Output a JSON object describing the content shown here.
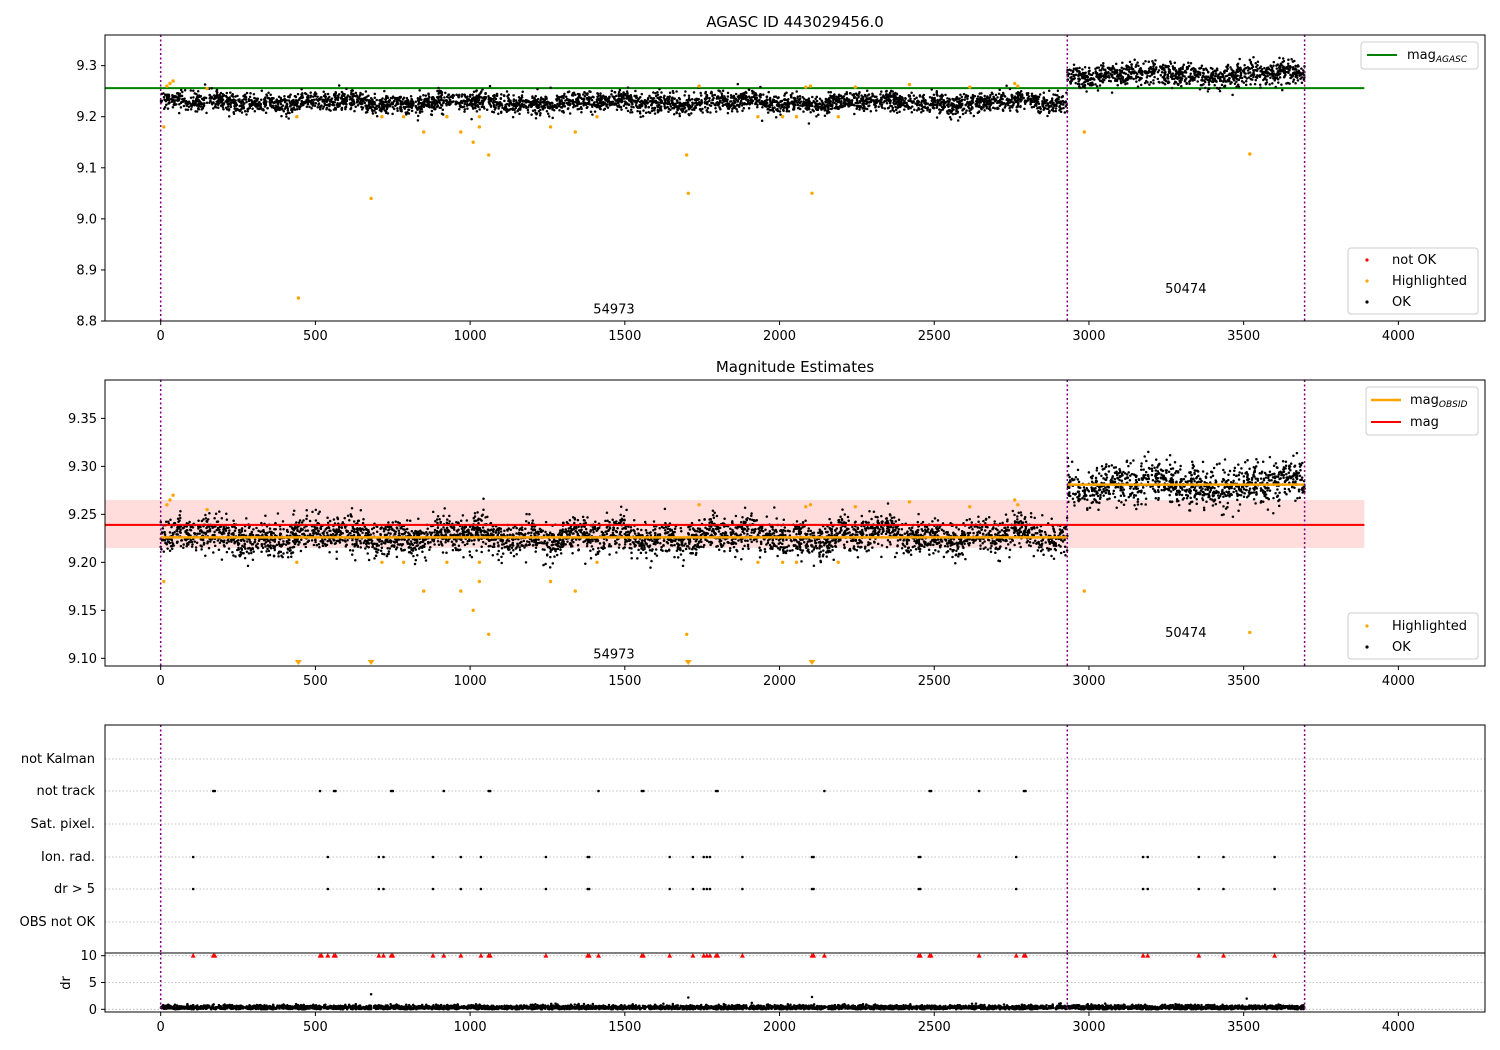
{
  "chart_data": [
    {
      "type": "scatter",
      "title": "AGASC ID 443029456.0",
      "xlim": [
        -180,
        4280
      ],
      "ylim": [
        8.8,
        9.36
      ],
      "x_ticks": [
        0,
        500,
        1000,
        1500,
        2000,
        2500,
        3000,
        3500,
        4000
      ],
      "y_ticks": [
        8.8,
        8.9,
        9.0,
        9.1,
        9.2,
        9.3
      ],
      "vlines": [
        0,
        2930,
        3697
      ],
      "obsid_labels": [
        {
          "text": "54973",
          "x": 1465,
          "y": 8.815
        },
        {
          "text": "50474",
          "x": 3313,
          "y": 8.855
        }
      ],
      "legend_upper": [
        {
          "name": "mag",
          "sub": "AGASC",
          "color": "#008000",
          "kind": "line"
        }
      ],
      "legend_lower": [
        {
          "name": "not OK",
          "color": "#ff0000",
          "kind": "dot"
        },
        {
          "name": "Highlighted",
          "color": "#ffa500",
          "kind": "dot"
        },
        {
          "name": "OK",
          "color": "#000000",
          "kind": "dot"
        }
      ],
      "hline": {
        "y": 9.256,
        "x": [
          -180,
          3890
        ],
        "color": "#008000"
      },
      "segments": [
        {
          "x": [
            0,
            2930
          ],
          "center": 9.228,
          "spread": 0.022
        },
        {
          "x": [
            2930,
            3697
          ],
          "center": 9.282,
          "spread": 0.026
        }
      ],
      "highlighted": [
        [
          10,
          9.18
        ],
        [
          20,
          9.26
        ],
        [
          30,
          9.265
        ],
        [
          40,
          9.27
        ],
        [
          150,
          9.255
        ],
        [
          440,
          9.2
        ],
        [
          445,
          8.845
        ],
        [
          680,
          9.04
        ],
        [
          715,
          9.2
        ],
        [
          785,
          9.2
        ],
        [
          850,
          9.17
        ],
        [
          925,
          9.2
        ],
        [
          970,
          9.17
        ],
        [
          1010,
          9.15
        ],
        [
          1030,
          9.18
        ],
        [
          1030,
          9.2
        ],
        [
          1060,
          9.125
        ],
        [
          1260,
          9.18
        ],
        [
          1340,
          9.17
        ],
        [
          1410,
          9.2
        ],
        [
          1700,
          9.125
        ],
        [
          1705,
          9.05
        ],
        [
          1740,
          9.26
        ],
        [
          1930,
          9.2
        ],
        [
          2010,
          9.2
        ],
        [
          2055,
          9.2
        ],
        [
          2085,
          9.258
        ],
        [
          2100,
          9.26
        ],
        [
          2105,
          9.05
        ],
        [
          2190,
          9.2
        ],
        [
          2245,
          9.258
        ],
        [
          2420,
          9.263
        ],
        [
          2615,
          9.258
        ],
        [
          2760,
          9.265
        ],
        [
          2770,
          9.26
        ],
        [
          2985,
          9.17
        ],
        [
          3520,
          9.127
        ]
      ]
    },
    {
      "type": "scatter",
      "title": "Magnitude Estimates",
      "xlim": [
        -180,
        4280
      ],
      "ylim": [
        9.092,
        9.39
      ],
      "x_ticks": [
        0,
        500,
        1000,
        1500,
        2000,
        2500,
        3000,
        3500,
        4000
      ],
      "y_ticks": [
        9.1,
        9.15,
        9.2,
        9.25,
        9.3,
        9.35
      ],
      "vlines": [
        0,
        2930,
        3697
      ],
      "obsid_labels": [
        {
          "text": "54973",
          "x": 1465,
          "y": 9.1
        },
        {
          "text": "50474",
          "x": 3313,
          "y": 9.122
        }
      ],
      "legend_upper": [
        {
          "name": "mag",
          "sub": "OBSID",
          "color": "#ffa500",
          "kind": "line"
        },
        {
          "name": "mag",
          "sub": "",
          "color": "#ff0000",
          "kind": "line"
        }
      ],
      "legend_lower": [
        {
          "name": "Highlighted",
          "color": "#ffa500",
          "kind": "dot"
        },
        {
          "name": "OK",
          "color": "#000000",
          "kind": "dot"
        }
      ],
      "band": {
        "y": [
          9.215,
          9.265
        ],
        "x": [
          -180,
          3890
        ],
        "color": "#ffdddd"
      },
      "hline": {
        "y": 9.239,
        "x": [
          -180,
          3890
        ],
        "color": "#ff0000"
      },
      "obsid_means": [
        {
          "x": [
            0,
            2930
          ],
          "y": 9.226
        },
        {
          "x": [
            2930,
            3697
          ],
          "y": 9.281
        }
      ],
      "segments": [
        {
          "x": [
            0,
            2930
          ],
          "center": 9.227,
          "spread": 0.021
        },
        {
          "x": [
            2930,
            3697
          ],
          "center": 9.281,
          "spread": 0.024
        }
      ],
      "highlighted": [
        [
          10,
          9.18
        ],
        [
          20,
          9.26
        ],
        [
          30,
          9.265
        ],
        [
          40,
          9.27
        ],
        [
          150,
          9.255
        ],
        [
          440,
          9.2
        ],
        [
          715,
          9.2
        ],
        [
          785,
          9.2
        ],
        [
          850,
          9.17
        ],
        [
          925,
          9.2
        ],
        [
          970,
          9.17
        ],
        [
          1010,
          9.15
        ],
        [
          1030,
          9.18
        ],
        [
          1030,
          9.2
        ],
        [
          1060,
          9.125
        ],
        [
          1260,
          9.18
        ],
        [
          1340,
          9.17
        ],
        [
          1410,
          9.2
        ],
        [
          1700,
          9.125
        ],
        [
          1740,
          9.26
        ],
        [
          1930,
          9.2
        ],
        [
          2010,
          9.2
        ],
        [
          2055,
          9.2
        ],
        [
          2085,
          9.258
        ],
        [
          2100,
          9.26
        ],
        [
          2190,
          9.2
        ],
        [
          2245,
          9.258
        ],
        [
          2420,
          9.263
        ],
        [
          2615,
          9.258
        ],
        [
          2760,
          9.265
        ],
        [
          2770,
          9.26
        ],
        [
          2985,
          9.17
        ],
        [
          3520,
          9.127
        ]
      ],
      "offscale_markers": [
        445,
        680,
        1705,
        2105
      ]
    },
    {
      "type": "scatter",
      "title": "",
      "xlim": [
        -180,
        4280
      ],
      "x_ticks": [
        0,
        500,
        1000,
        1500,
        2000,
        2500,
        3000,
        3500,
        4000
      ],
      "vlines": [
        0,
        2930,
        3697
      ],
      "flag_rows": [
        "not Kalman",
        "not track",
        "Sat. pixel.",
        "Ion. rad.",
        "dr > 5",
        "OBS not OK"
      ],
      "flags": {
        "not track": [
          170,
          175,
          515,
          560,
          565,
          745,
          750,
          915,
          1060,
          1065,
          1415,
          1555,
          1560,
          1795,
          1800,
          2145,
          2485,
          2490,
          2645,
          2790,
          2795
        ],
        "Ion. rad.": [
          105,
          540,
          705,
          720,
          880,
          970,
          1035,
          1245,
          1380,
          1385,
          1645,
          1720,
          1755,
          1765,
          1775,
          1880,
          2105,
          2110,
          2450,
          2455,
          2765,
          3175,
          3190,
          3355,
          3435,
          3600
        ],
        "dr > 5": [
          105,
          540,
          705,
          720,
          880,
          970,
          1035,
          1245,
          1380,
          1385,
          1645,
          1720,
          1755,
          1765,
          1775,
          1880,
          2105,
          2110,
          2450,
          2455,
          2765,
          3175,
          3190,
          3355,
          3435,
          3600
        ]
      },
      "dr_ylabel": "dr",
      "dr_ylim": [
        -0.5,
        10.5
      ],
      "dr_ticks": [
        0,
        5,
        10
      ],
      "dr_clipped": [
        105,
        170,
        175,
        515,
        520,
        540,
        560,
        565,
        705,
        720,
        745,
        750,
        880,
        915,
        970,
        1035,
        1060,
        1065,
        1245,
        1380,
        1385,
        1415,
        1555,
        1560,
        1645,
        1720,
        1755,
        1765,
        1775,
        1795,
        1800,
        1880,
        2105,
        2110,
        2145,
        2450,
        2455,
        2485,
        2490,
        2645,
        2765,
        2790,
        2795,
        3175,
        3190,
        3355,
        3435,
        3600
      ],
      "dr_outliers": [
        [
          680,
          2.8
        ],
        [
          1705,
          2.2
        ],
        [
          2105,
          2.3
        ],
        [
          3510,
          2.0
        ]
      ],
      "dr_range": [
        0,
        3697
      ]
    }
  ]
}
